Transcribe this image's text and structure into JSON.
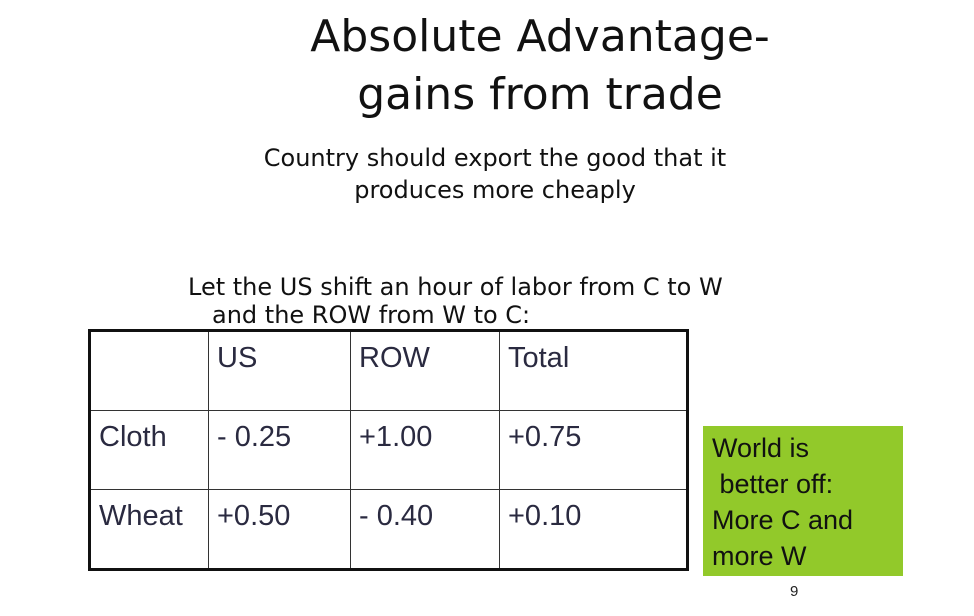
{
  "slide": {
    "title_line1": "Absolute Advantage-",
    "title_line2": "gains from trade",
    "subtitle_line1": "Country should export the good that it",
    "subtitle_line2": "produces more cheaply",
    "body_line1": "Let the US shift an hour of labor from C to W",
    "body_line2": "and the ROW from W to C:",
    "page_number": "9"
  },
  "table": {
    "headers": [
      "",
      "US",
      "ROW",
      "Total"
    ],
    "rows": [
      [
        "Cloth",
        "- 0.25",
        "+1.00",
        "+0.75"
      ],
      [
        "Wheat",
        "+0.50",
        "- 0.40",
        "+0.10"
      ]
    ]
  },
  "callout": {
    "lines": [
      "World is",
      " better off:",
      "More C and",
      "more W"
    ],
    "background": "#92c92a"
  }
}
